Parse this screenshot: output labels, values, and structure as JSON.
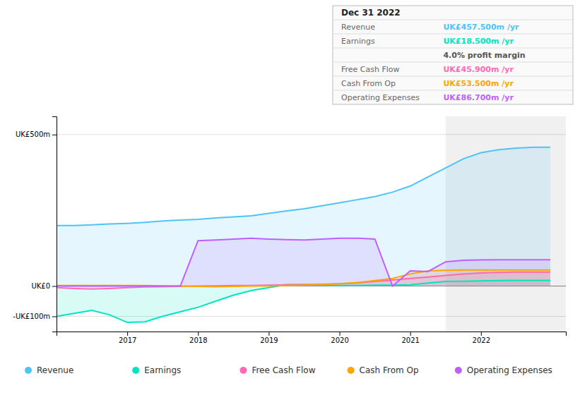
{
  "chart_data": {
    "type": "area",
    "x": [
      2016.0,
      2016.25,
      2016.5,
      2016.75,
      2017.0,
      2017.25,
      2017.5,
      2017.75,
      2018.0,
      2018.25,
      2018.5,
      2018.75,
      2019.0,
      2019.25,
      2019.5,
      2019.75,
      2020.0,
      2020.25,
      2020.5,
      2020.75,
      2021.0,
      2021.25,
      2021.5,
      2021.75,
      2022.0,
      2022.25,
      2022.5,
      2022.75,
      2022.98
    ],
    "series": [
      {
        "name": "Revenue",
        "color": "#4fc3f7",
        "values": [
          200,
          200,
          202,
          205,
          207,
          210,
          215,
          218,
          220,
          225,
          228,
          232,
          240,
          248,
          255,
          265,
          275,
          285,
          295,
          310,
          330,
          360,
          390,
          420,
          440,
          450,
          455,
          458,
          458
        ]
      },
      {
        "name": "Earnings",
        "color": "#00e5c0",
        "values": [
          -100,
          -90,
          -80,
          -95,
          -120,
          -118,
          -100,
          -85,
          -70,
          -50,
          -30,
          -15,
          -5,
          5,
          5,
          3,
          2,
          2,
          3,
          3,
          4,
          10,
          15,
          16,
          17,
          18,
          18.5,
          18.5,
          18.5
        ]
      },
      {
        "name": "Free Cash Flow",
        "color": "#ff69b4",
        "values": [
          -5,
          -8,
          -10,
          -8,
          -5,
          -3,
          -2,
          -1,
          0,
          1,
          2,
          2,
          3,
          4,
          5,
          6,
          8,
          10,
          15,
          20,
          25,
          30,
          35,
          40,
          43,
          45,
          46,
          46,
          46
        ]
      },
      {
        "name": "Cash From Op",
        "color": "#ffa500",
        "values": [
          2,
          2,
          2,
          2,
          2,
          2,
          1,
          0,
          -1,
          -2,
          -1,
          0,
          1,
          2,
          3,
          5,
          8,
          12,
          18,
          25,
          40,
          50,
          52,
          53,
          53,
          53,
          53,
          53,
          53
        ]
      },
      {
        "name": "Operating Expenses",
        "color": "#bf5fff",
        "values": [
          0,
          0,
          0,
          0,
          0,
          0,
          0,
          0,
          150,
          152,
          155,
          158,
          155,
          153,
          152,
          155,
          158,
          158,
          155,
          0,
          50,
          48,
          80,
          85,
          86,
          87,
          87,
          87,
          87
        ]
      }
    ],
    "xlim": [
      2016.0,
      2023.2
    ],
    "xticks": [
      2017,
      2018,
      2019,
      2020,
      2021,
      2022
    ],
    "ylim": [
      -150,
      560
    ],
    "yticks": [
      {
        "value": 500,
        "label": "UK£500m"
      },
      {
        "value": 0,
        "label": "UK£0"
      },
      {
        "value": -100,
        "label": "-UK£100m"
      }
    ],
    "grid": true,
    "highlight_x": [
      2021.5,
      2023.2
    ],
    "annotations": [
      {
        "text": "Dec 31 2022"
      },
      {
        "text": "Revenue",
        "value": "UK£457.500m /yr",
        "color": "#4fc3f7"
      },
      {
        "text": "Earnings",
        "value": "UK£18.500m /yr",
        "color": "#00e5c0"
      },
      {
        "value": "4.0% profit margin",
        "color": "#cccccc"
      },
      {
        "text": "Free Cash Flow",
        "value": "UK£45.900m /yr",
        "color": "#ff69b4"
      },
      {
        "text": "Cash From Op",
        "value": "UK£53.500m /yr",
        "color": "#ffa500"
      },
      {
        "text": "Operating Expenses",
        "value": "UK£86.700m /yr",
        "color": "#bf5fff"
      }
    ]
  }
}
